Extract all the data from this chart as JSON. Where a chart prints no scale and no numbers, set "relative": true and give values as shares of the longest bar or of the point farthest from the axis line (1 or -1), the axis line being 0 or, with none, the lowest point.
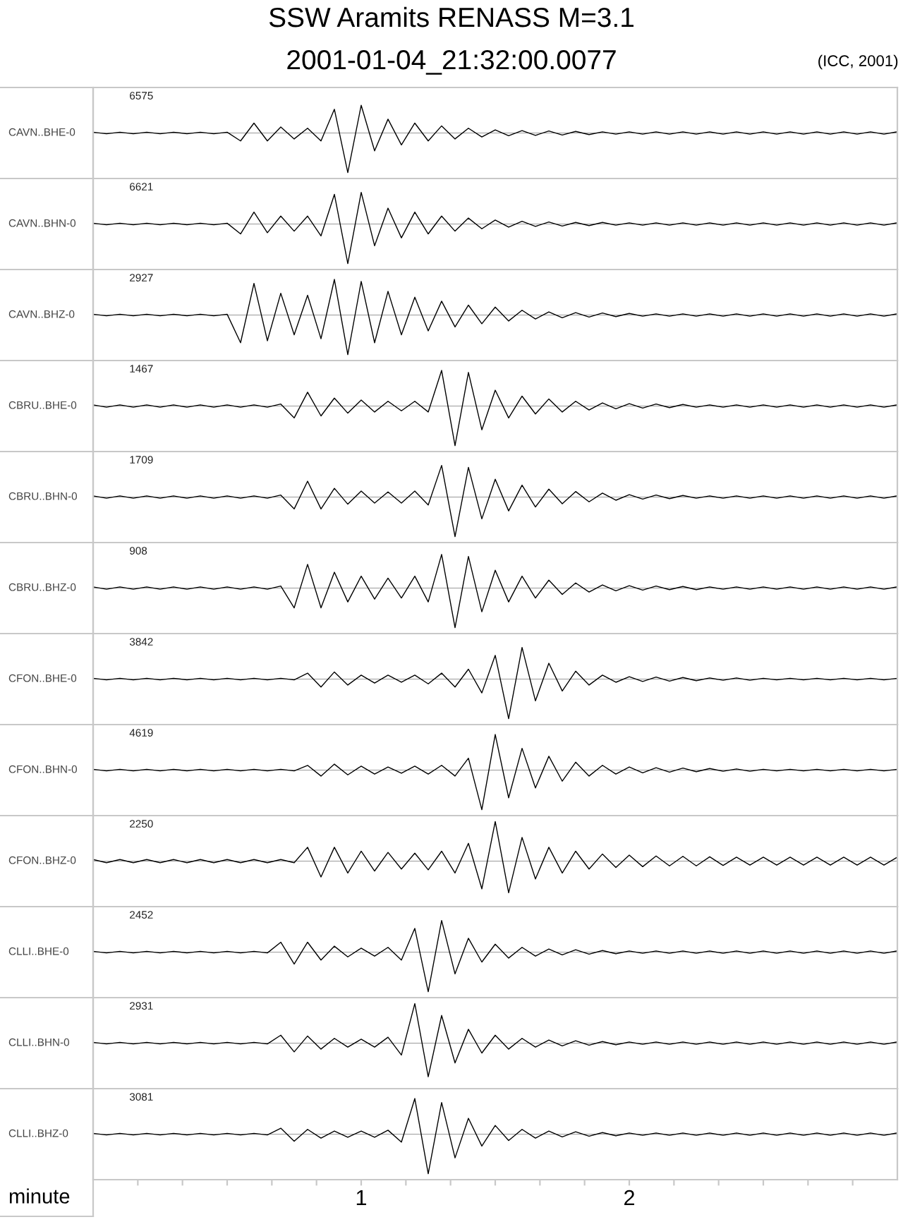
{
  "chart_data": [
    {
      "type": "line",
      "title": "SSW Aramits RENASS M=3.1",
      "subtitle": "2001-01-04_21:32:00.0077",
      "ylabel": "CAVN..BHE-0",
      "annotations": [
        "6575",
        "(ICC, 2001)"
      ],
      "relative": true,
      "tick_labels": false,
      "xlim": [
        0,
        3
      ],
      "x": [
        0,
        0.05,
        0.1,
        0.15,
        0.2,
        0.25,
        0.3,
        0.35,
        0.4,
        0.45,
        0.5,
        0.55,
        0.6,
        0.65,
        0.7,
        0.75,
        0.8,
        0.85,
        0.9,
        0.95,
        1,
        1.05,
        1.1,
        1.15,
        1.2,
        1.25,
        1.3,
        1.35,
        1.4,
        1.45,
        1.5,
        1.55,
        1.6,
        1.65,
        1.7,
        1.75,
        1.8,
        1.85,
        1.9,
        1.95,
        2,
        2.05,
        2.1,
        2.15,
        2.2,
        2.25,
        2.3,
        2.35,
        2.4,
        2.45,
        2.5,
        2.55,
        2.6,
        2.65,
        2.7,
        2.75,
        2.8,
        2.85,
        2.9,
        2.95,
        3
      ],
      "series": [
        {
          "color": "#000000",
          "values": [
            0.02,
            -0.02,
            0.02,
            -0.02,
            0.02,
            -0.02,
            0.02,
            -0.02,
            0.02,
            -0.02,
            0.02,
            -0.2,
            0.25,
            -0.2,
            0.15,
            -0.15,
            0.12,
            -0.2,
            0.6,
            -1,
            0.7,
            -0.45,
            0.35,
            -0.3,
            0.25,
            -0.2,
            0.18,
            -0.15,
            0.12,
            -0.1,
            0.08,
            -0.07,
            0.06,
            -0.06,
            0.05,
            -0.05,
            0.04,
            -0.04,
            0.03,
            -0.03,
            0.03,
            -0.03,
            0.03,
            -0.03,
            0.03,
            -0.03,
            0.03,
            -0.03,
            0.03,
            -0.03,
            0.03,
            -0.03,
            0.03,
            -0.03,
            0.03,
            -0.03,
            0.03,
            -0.03,
            0.03,
            -0.03,
            0.03
          ]
        }
      ]
    },
    {
      "type": "line",
      "ylabel": "CAVN..BHN-0",
      "annotations": [
        "6621"
      ],
      "relative": true,
      "tick_labels": false,
      "xlim": [
        0,
        3
      ],
      "x": [
        0,
        0.05,
        0.1,
        0.15,
        0.2,
        0.25,
        0.3,
        0.35,
        0.4,
        0.45,
        0.5,
        0.55,
        0.6,
        0.65,
        0.7,
        0.75,
        0.8,
        0.85,
        0.9,
        0.95,
        1,
        1.05,
        1.1,
        1.15,
        1.2,
        1.25,
        1.3,
        1.35,
        1.4,
        1.45,
        1.5,
        1.55,
        1.6,
        1.65,
        1.7,
        1.75,
        1.8,
        1.85,
        1.9,
        1.95,
        2,
        2.05,
        2.1,
        2.15,
        2.2,
        2.25,
        2.3,
        2.35,
        2.4,
        2.45,
        2.5,
        2.55,
        2.6,
        2.65,
        2.7,
        2.75,
        2.8,
        2.85,
        2.9,
        2.95,
        3
      ],
      "series": [
        {
          "color": "#000000",
          "values": [
            0.02,
            -0.02,
            0.02,
            -0.02,
            0.02,
            -0.02,
            0.02,
            -0.02,
            0.02,
            -0.02,
            0.02,
            -0.25,
            0.3,
            -0.22,
            0.2,
            -0.18,
            0.2,
            -0.3,
            0.75,
            -1,
            0.8,
            -0.55,
            0.4,
            -0.35,
            0.3,
            -0.25,
            0.2,
            -0.18,
            0.15,
            -0.12,
            0.1,
            -0.08,
            0.07,
            -0.06,
            0.05,
            -0.05,
            0.04,
            -0.04,
            0.04,
            -0.03,
            0.03,
            -0.03,
            0.03,
            -0.03,
            0.03,
            -0.03,
            0.03,
            -0.03,
            0.03,
            -0.03,
            0.03,
            -0.03,
            0.03,
            -0.03,
            0.03,
            -0.03,
            0.03,
            -0.03,
            0.03,
            -0.03,
            0.03
          ]
        }
      ]
    },
    {
      "type": "line",
      "ylabel": "CAVN..BHZ-0",
      "annotations": [
        "2927"
      ],
      "relative": true,
      "tick_labels": false,
      "xlim": [
        0,
        3
      ],
      "x": [
        0,
        0.05,
        0.1,
        0.15,
        0.2,
        0.25,
        0.3,
        0.35,
        0.4,
        0.45,
        0.5,
        0.55,
        0.6,
        0.65,
        0.7,
        0.75,
        0.8,
        0.85,
        0.9,
        0.95,
        1,
        1.05,
        1.1,
        1.15,
        1.2,
        1.25,
        1.3,
        1.35,
        1.4,
        1.45,
        1.5,
        1.55,
        1.6,
        1.65,
        1.7,
        1.75,
        1.8,
        1.85,
        1.9,
        1.95,
        2,
        2.05,
        2.1,
        2.15,
        2.2,
        2.25,
        2.3,
        2.35,
        2.4,
        2.45,
        2.5,
        2.55,
        2.6,
        2.65,
        2.7,
        2.75,
        2.8,
        2.85,
        2.9,
        2.95,
        3
      ],
      "series": [
        {
          "color": "#000000",
          "values": [
            0.02,
            -0.02,
            0.02,
            -0.02,
            0.02,
            -0.02,
            0.02,
            -0.02,
            0.02,
            -0.02,
            0.02,
            -0.7,
            0.8,
            -0.65,
            0.55,
            -0.5,
            0.5,
            -0.6,
            0.9,
            -1,
            0.85,
            -0.7,
            0.6,
            -0.5,
            0.45,
            -0.4,
            0.35,
            -0.3,
            0.25,
            -0.22,
            0.2,
            -0.15,
            0.12,
            -0.1,
            0.08,
            -0.07,
            0.06,
            -0.05,
            0.05,
            -0.04,
            0.04,
            -0.03,
            0.03,
            -0.03,
            0.03,
            -0.03,
            0.03,
            -0.03,
            0.03,
            -0.03,
            0.03,
            -0.03,
            0.03,
            -0.03,
            0.03,
            -0.03,
            0.03,
            -0.03,
            0.03,
            -0.03,
            0.03
          ]
        }
      ]
    },
    {
      "type": "line",
      "ylabel": "CBRU..BHE-0",
      "annotations": [
        "1467"
      ],
      "relative": true,
      "tick_labels": false,
      "xlim": [
        0,
        3
      ],
      "x": [
        0,
        0.05,
        0.1,
        0.15,
        0.2,
        0.25,
        0.3,
        0.35,
        0.4,
        0.45,
        0.5,
        0.55,
        0.6,
        0.65,
        0.7,
        0.75,
        0.8,
        0.85,
        0.9,
        0.95,
        1,
        1.05,
        1.1,
        1.15,
        1.2,
        1.25,
        1.3,
        1.35,
        1.4,
        1.45,
        1.5,
        1.55,
        1.6,
        1.65,
        1.7,
        1.75,
        1.8,
        1.85,
        1.9,
        1.95,
        2,
        2.05,
        2.1,
        2.15,
        2.2,
        2.25,
        2.3,
        2.35,
        2.4,
        2.45,
        2.5,
        2.55,
        2.6,
        2.65,
        2.7,
        2.75,
        2.8,
        2.85,
        2.9,
        2.95,
        3
      ],
      "series": [
        {
          "color": "#000000",
          "values": [
            0.03,
            -0.03,
            0.03,
            -0.03,
            0.03,
            -0.03,
            0.03,
            -0.03,
            0.03,
            -0.03,
            0.03,
            -0.03,
            0.03,
            -0.03,
            0.05,
            -0.3,
            0.35,
            -0.25,
            0.2,
            -0.18,
            0.15,
            -0.15,
            0.12,
            -0.12,
            0.12,
            -0.15,
            0.9,
            -1,
            0.85,
            -0.6,
            0.4,
            -0.3,
            0.25,
            -0.2,
            0.18,
            -0.15,
            0.12,
            -0.1,
            0.08,
            -0.07,
            0.06,
            -0.05,
            0.05,
            -0.04,
            0.04,
            -0.03,
            0.03,
            -0.03,
            0.03,
            -0.03,
            0.03,
            -0.03,
            0.03,
            -0.03,
            0.03,
            -0.03,
            0.03,
            -0.03,
            0.03,
            -0.03,
            0.03
          ]
        }
      ]
    },
    {
      "type": "line",
      "ylabel": "CBRU..BHN-0",
      "annotations": [
        "1709"
      ],
      "relative": true,
      "tick_labels": false,
      "xlim": [
        0,
        3
      ],
      "x": [
        0,
        0.05,
        0.1,
        0.15,
        0.2,
        0.25,
        0.3,
        0.35,
        0.4,
        0.45,
        0.5,
        0.55,
        0.6,
        0.65,
        0.7,
        0.75,
        0.8,
        0.85,
        0.9,
        0.95,
        1,
        1.05,
        1.1,
        1.15,
        1.2,
        1.25,
        1.3,
        1.35,
        1.4,
        1.45,
        1.5,
        1.55,
        1.6,
        1.65,
        1.7,
        1.75,
        1.8,
        1.85,
        1.9,
        1.95,
        2,
        2.05,
        2.1,
        2.15,
        2.2,
        2.25,
        2.3,
        2.35,
        2.4,
        2.45,
        2.5,
        2.55,
        2.6,
        2.65,
        2.7,
        2.75,
        2.8,
        2.85,
        2.9,
        2.95,
        3
      ],
      "series": [
        {
          "color": "#000000",
          "values": [
            0.03,
            -0.03,
            0.03,
            -0.03,
            0.03,
            -0.03,
            0.03,
            -0.03,
            0.03,
            -0.03,
            0.03,
            -0.03,
            0.03,
            -0.03,
            0.05,
            -0.3,
            0.4,
            -0.3,
            0.22,
            -0.18,
            0.15,
            -0.15,
            0.13,
            -0.15,
            0.15,
            -0.2,
            0.8,
            -1,
            0.75,
            -0.55,
            0.45,
            -0.35,
            0.3,
            -0.25,
            0.2,
            -0.17,
            0.14,
            -0.12,
            0.1,
            -0.08,
            0.06,
            -0.05,
            0.05,
            -0.04,
            0.04,
            -0.03,
            0.03,
            -0.03,
            0.03,
            -0.03,
            0.03,
            -0.03,
            0.03,
            -0.03,
            0.03,
            -0.03,
            0.03,
            -0.03,
            0.03,
            -0.03,
            0.03
          ]
        }
      ]
    },
    {
      "type": "line",
      "ylabel": "CBRU..BHZ-0",
      "annotations": [
        "908"
      ],
      "relative": true,
      "tick_labels": false,
      "xlim": [
        0,
        3
      ],
      "x": [
        0,
        0.05,
        0.1,
        0.15,
        0.2,
        0.25,
        0.3,
        0.35,
        0.4,
        0.45,
        0.5,
        0.55,
        0.6,
        0.65,
        0.7,
        0.75,
        0.8,
        0.85,
        0.9,
        0.95,
        1,
        1.05,
        1.1,
        1.15,
        1.2,
        1.25,
        1.3,
        1.35,
        1.4,
        1.45,
        1.5,
        1.55,
        1.6,
        1.65,
        1.7,
        1.75,
        1.8,
        1.85,
        1.9,
        1.95,
        2,
        2.05,
        2.1,
        2.15,
        2.2,
        2.25,
        2.3,
        2.35,
        2.4,
        2.45,
        2.5,
        2.55,
        2.6,
        2.65,
        2.7,
        2.75,
        2.8,
        2.85,
        2.9,
        2.95,
        3
      ],
      "series": [
        {
          "color": "#000000",
          "values": [
            0.03,
            -0.03,
            0.03,
            -0.03,
            0.03,
            -0.03,
            0.03,
            -0.03,
            0.03,
            -0.03,
            0.03,
            -0.03,
            0.03,
            -0.03,
            0.05,
            -0.5,
            0.6,
            -0.5,
            0.4,
            -0.35,
            0.3,
            -0.28,
            0.25,
            -0.25,
            0.3,
            -0.35,
            0.85,
            -1,
            0.8,
            -0.6,
            0.45,
            -0.35,
            0.3,
            -0.25,
            0.2,
            -0.16,
            0.13,
            -0.1,
            0.08,
            -0.07,
            0.06,
            -0.05,
            0.05,
            -0.04,
            0.04,
            -0.04,
            0.03,
            -0.03,
            0.03,
            -0.03,
            0.03,
            -0.03,
            0.03,
            -0.03,
            0.03,
            -0.03,
            0.03,
            -0.03,
            0.03,
            -0.03,
            0.03
          ]
        }
      ]
    },
    {
      "type": "line",
      "ylabel": "CFON..BHE-0",
      "annotations": [
        "3842"
      ],
      "relative": true,
      "tick_labels": false,
      "xlim": [
        0,
        3
      ],
      "x": [
        0,
        0.05,
        0.1,
        0.15,
        0.2,
        0.25,
        0.3,
        0.35,
        0.4,
        0.45,
        0.5,
        0.55,
        0.6,
        0.65,
        0.7,
        0.75,
        0.8,
        0.85,
        0.9,
        0.95,
        1,
        1.05,
        1.1,
        1.15,
        1.2,
        1.25,
        1.3,
        1.35,
        1.4,
        1.45,
        1.5,
        1.55,
        1.6,
        1.65,
        1.7,
        1.75,
        1.8,
        1.85,
        1.9,
        1.95,
        2,
        2.05,
        2.1,
        2.15,
        2.2,
        2.25,
        2.3,
        2.35,
        2.4,
        2.45,
        2.5,
        2.55,
        2.6,
        2.65,
        2.7,
        2.75,
        2.8,
        2.85,
        2.9,
        2.95,
        3
      ],
      "series": [
        {
          "color": "#000000",
          "values": [
            0.02,
            -0.02,
            0.02,
            -0.02,
            0.02,
            -0.02,
            0.02,
            -0.02,
            0.02,
            -0.02,
            0.02,
            -0.02,
            0.02,
            -0.02,
            0.02,
            -0.02,
            0.15,
            -0.2,
            0.18,
            -0.15,
            0.1,
            -0.1,
            0.1,
            -0.08,
            0.1,
            -0.12,
            0.15,
            -0.2,
            0.25,
            -0.35,
            0.6,
            -1,
            0.8,
            -0.55,
            0.4,
            -0.3,
            0.2,
            -0.15,
            0.1,
            -0.08,
            0.06,
            -0.06,
            0.05,
            -0.05,
            0.04,
            -0.04,
            0.03,
            -0.03,
            0.03,
            -0.03,
            0.02,
            -0.02,
            0.02,
            -0.02,
            0.02,
            -0.02,
            0.02,
            -0.02,
            0.02,
            -0.02,
            0.02
          ]
        }
      ]
    },
    {
      "type": "line",
      "ylabel": "CFON..BHN-0",
      "annotations": [
        "4619"
      ],
      "relative": true,
      "tick_labels": false,
      "xlim": [
        0,
        3
      ],
      "x": [
        0,
        0.05,
        0.1,
        0.15,
        0.2,
        0.25,
        0.3,
        0.35,
        0.4,
        0.45,
        0.5,
        0.55,
        0.6,
        0.65,
        0.7,
        0.75,
        0.8,
        0.85,
        0.9,
        0.95,
        1,
        1.05,
        1.1,
        1.15,
        1.2,
        1.25,
        1.3,
        1.35,
        1.4,
        1.45,
        1.5,
        1.55,
        1.6,
        1.65,
        1.7,
        1.75,
        1.8,
        1.85,
        1.9,
        1.95,
        2,
        2.05,
        2.1,
        2.15,
        2.2,
        2.25,
        2.3,
        2.35,
        2.4,
        2.45,
        2.5,
        2.55,
        2.6,
        2.65,
        2.7,
        2.75,
        2.8,
        2.85,
        2.9,
        2.95,
        3
      ],
      "series": [
        {
          "color": "#000000",
          "values": [
            0.02,
            -0.02,
            0.02,
            -0.02,
            0.02,
            -0.02,
            0.02,
            -0.02,
            0.02,
            -0.02,
            0.02,
            -0.02,
            0.02,
            -0.02,
            0.02,
            -0.02,
            0.12,
            -0.15,
            0.15,
            -0.12,
            0.1,
            -0.1,
            0.08,
            -0.08,
            0.1,
            -0.1,
            0.12,
            -0.15,
            0.3,
            -1,
            0.9,
            -0.7,
            0.55,
            -0.45,
            0.35,
            -0.28,
            0.2,
            -0.15,
            0.12,
            -0.1,
            0.08,
            -0.07,
            0.06,
            -0.05,
            0.05,
            -0.04,
            0.04,
            -0.03,
            0.03,
            -0.03,
            0.02,
            -0.02,
            0.02,
            -0.02,
            0.02,
            -0.02,
            0.02,
            -0.02,
            0.02,
            -0.02,
            0.02
          ]
        }
      ]
    },
    {
      "type": "line",
      "ylabel": "CFON..BHZ-0",
      "annotations": [
        "2250"
      ],
      "relative": true,
      "tick_labels": false,
      "xlim": [
        0,
        3
      ],
      "x": [
        0,
        0.05,
        0.1,
        0.15,
        0.2,
        0.25,
        0.3,
        0.35,
        0.4,
        0.45,
        0.5,
        0.55,
        0.6,
        0.65,
        0.7,
        0.75,
        0.8,
        0.85,
        0.9,
        0.95,
        1,
        1.05,
        1.1,
        1.15,
        1.2,
        1.25,
        1.3,
        1.35,
        1.4,
        1.45,
        1.5,
        1.55,
        1.6,
        1.65,
        1.7,
        1.75,
        1.8,
        1.85,
        1.9,
        1.95,
        2,
        2.05,
        2.1,
        2.15,
        2.2,
        2.25,
        2.3,
        2.35,
        2.4,
        2.45,
        2.5,
        2.55,
        2.6,
        2.65,
        2.7,
        2.75,
        2.8,
        2.85,
        2.9,
        2.95,
        3
      ],
      "series": [
        {
          "color": "#000000",
          "values": [
            0.04,
            -0.04,
            0.04,
            -0.04,
            0.04,
            -0.04,
            0.04,
            -0.04,
            0.04,
            -0.04,
            0.04,
            -0.04,
            0.04,
            -0.04,
            0.04,
            -0.04,
            0.35,
            -0.4,
            0.35,
            -0.3,
            0.25,
            -0.25,
            0.22,
            -0.2,
            0.2,
            -0.22,
            0.25,
            -0.3,
            0.45,
            -0.7,
            1,
            -0.8,
            0.6,
            -0.45,
            0.35,
            -0.3,
            0.25,
            -0.2,
            0.18,
            -0.16,
            0.15,
            -0.14,
            0.13,
            -0.12,
            0.12,
            -0.12,
            0.11,
            -0.11,
            0.1,
            -0.1,
            0.1,
            -0.1,
            0.1,
            -0.1,
            0.1,
            -0.1,
            0.1,
            -0.1,
            0.1,
            -0.1,
            0.1
          ]
        }
      ]
    },
    {
      "type": "line",
      "ylabel": "CLLI..BHE-0",
      "annotations": [
        "2452"
      ],
      "relative": true,
      "tick_labels": false,
      "xlim": [
        0,
        3
      ],
      "x": [
        0,
        0.05,
        0.1,
        0.15,
        0.2,
        0.25,
        0.3,
        0.35,
        0.4,
        0.45,
        0.5,
        0.55,
        0.6,
        0.65,
        0.7,
        0.75,
        0.8,
        0.85,
        0.9,
        0.95,
        1,
        1.05,
        1.1,
        1.15,
        1.2,
        1.25,
        1.3,
        1.35,
        1.4,
        1.45,
        1.5,
        1.55,
        1.6,
        1.65,
        1.7,
        1.75,
        1.8,
        1.85,
        1.9,
        1.95,
        2,
        2.05,
        2.1,
        2.15,
        2.2,
        2.25,
        2.3,
        2.35,
        2.4,
        2.45,
        2.5,
        2.55,
        2.6,
        2.65,
        2.7,
        2.75,
        2.8,
        2.85,
        2.9,
        2.95,
        3
      ],
      "series": [
        {
          "color": "#000000",
          "values": [
            0.02,
            -0.02,
            0.02,
            -0.02,
            0.02,
            -0.02,
            0.02,
            -0.02,
            0.02,
            -0.02,
            0.02,
            -0.02,
            0.02,
            -0.02,
            0.25,
            -0.3,
            0.25,
            -0.2,
            0.15,
            -0.12,
            0.1,
            -0.1,
            0.12,
            -0.2,
            0.6,
            -1,
            0.8,
            -0.55,
            0.35,
            -0.25,
            0.2,
            -0.15,
            0.12,
            -0.1,
            0.08,
            -0.07,
            0.06,
            -0.05,
            0.04,
            -0.04,
            0.03,
            -0.03,
            0.03,
            -0.03,
            0.03,
            -0.03,
            0.03,
            -0.03,
            0.03,
            -0.03,
            0.03,
            -0.03,
            0.03,
            -0.03,
            0.03,
            -0.03,
            0.03,
            -0.03,
            0.03,
            -0.03,
            0.03
          ]
        }
      ]
    },
    {
      "type": "line",
      "ylabel": "CLLI..BHN-0",
      "annotations": [
        "2931"
      ],
      "relative": true,
      "tick_labels": false,
      "xlim": [
        0,
        3
      ],
      "x": [
        0,
        0.05,
        0.1,
        0.15,
        0.2,
        0.25,
        0.3,
        0.35,
        0.4,
        0.45,
        0.5,
        0.55,
        0.6,
        0.65,
        0.7,
        0.75,
        0.8,
        0.85,
        0.9,
        0.95,
        1,
        1.05,
        1.1,
        1.15,
        1.2,
        1.25,
        1.3,
        1.35,
        1.4,
        1.45,
        1.5,
        1.55,
        1.6,
        1.65,
        1.7,
        1.75,
        1.8,
        1.85,
        1.9,
        1.95,
        2,
        2.05,
        2.1,
        2.15,
        2.2,
        2.25,
        2.3,
        2.35,
        2.4,
        2.45,
        2.5,
        2.55,
        2.6,
        2.65,
        2.7,
        2.75,
        2.8,
        2.85,
        2.9,
        2.95,
        3
      ],
      "series": [
        {
          "color": "#000000",
          "values": [
            0.02,
            -0.02,
            0.02,
            -0.02,
            0.02,
            -0.02,
            0.02,
            -0.02,
            0.02,
            -0.02,
            0.02,
            -0.02,
            0.02,
            -0.02,
            0.2,
            -0.22,
            0.18,
            -0.15,
            0.12,
            -0.1,
            0.1,
            -0.1,
            0.15,
            -0.3,
            1,
            -0.85,
            0.7,
            -0.5,
            0.35,
            -0.25,
            0.2,
            -0.15,
            0.12,
            -0.1,
            0.08,
            -0.07,
            0.06,
            -0.05,
            0.04,
            -0.04,
            0.03,
            -0.03,
            0.03,
            -0.03,
            0.03,
            -0.03,
            0.03,
            -0.03,
            0.03,
            -0.03,
            0.03,
            -0.03,
            0.03,
            -0.03,
            0.03,
            -0.03,
            0.03,
            -0.03,
            0.03,
            -0.03,
            0.03
          ]
        }
      ]
    },
    {
      "type": "line",
      "ylabel": "CLLI..BHZ-0",
      "xlabel": "minute",
      "annotations": [
        "3081"
      ],
      "relative": true,
      "tick_labels": "x",
      "xlim": [
        0,
        3
      ],
      "xticks": [
        {
          "value": 0.1667,
          "label": null
        },
        {
          "value": 0.3333,
          "label": null
        },
        {
          "value": 0.5,
          "label": null
        },
        {
          "value": 0.6667,
          "label": null
        },
        {
          "value": 0.8333,
          "label": null
        },
        1,
        {
          "value": 1.1667,
          "label": null
        },
        {
          "value": 1.3333,
          "label": null
        },
        {
          "value": 1.5,
          "label": null
        },
        {
          "value": 1.6667,
          "label": null
        },
        {
          "value": 1.8333,
          "label": null
        },
        2,
        {
          "value": 2.1667,
          "label": null
        },
        {
          "value": 2.3333,
          "label": null
        },
        {
          "value": 2.5,
          "label": null
        },
        {
          "value": 2.6667,
          "label": null
        },
        {
          "value": 2.8333,
          "label": null
        }
      ],
      "x": [
        0,
        0.05,
        0.1,
        0.15,
        0.2,
        0.25,
        0.3,
        0.35,
        0.4,
        0.45,
        0.5,
        0.55,
        0.6,
        0.65,
        0.7,
        0.75,
        0.8,
        0.85,
        0.9,
        0.95,
        1,
        1.05,
        1.1,
        1.15,
        1.2,
        1.25,
        1.3,
        1.35,
        1.4,
        1.45,
        1.5,
        1.55,
        1.6,
        1.65,
        1.7,
        1.75,
        1.8,
        1.85,
        1.9,
        1.95,
        2,
        2.05,
        2.1,
        2.15,
        2.2,
        2.25,
        2.3,
        2.35,
        2.4,
        2.45,
        2.5,
        2.55,
        2.6,
        2.65,
        2.7,
        2.75,
        2.8,
        2.85,
        2.9,
        2.95,
        3
      ],
      "series": [
        {
          "color": "#000000",
          "values": [
            0.02,
            -0.02,
            0.02,
            -0.02,
            0.02,
            -0.02,
            0.02,
            -0.02,
            0.02,
            -0.02,
            0.02,
            -0.02,
            0.02,
            -0.02,
            0.15,
            -0.18,
            0.12,
            -0.1,
            0.08,
            -0.08,
            0.08,
            -0.08,
            0.1,
            -0.2,
            0.9,
            -1,
            0.8,
            -0.6,
            0.4,
            -0.3,
            0.22,
            -0.16,
            0.12,
            -0.1,
            0.08,
            -0.07,
            0.06,
            -0.05,
            0.04,
            -0.04,
            0.03,
            -0.03,
            0.03,
            -0.03,
            0.03,
            -0.03,
            0.03,
            -0.03,
            0.03,
            -0.03,
            0.03,
            -0.03,
            0.03,
            -0.03,
            0.03,
            -0.03,
            0.03,
            -0.03,
            0.03,
            -0.03,
            0.03
          ]
        }
      ]
    }
  ]
}
